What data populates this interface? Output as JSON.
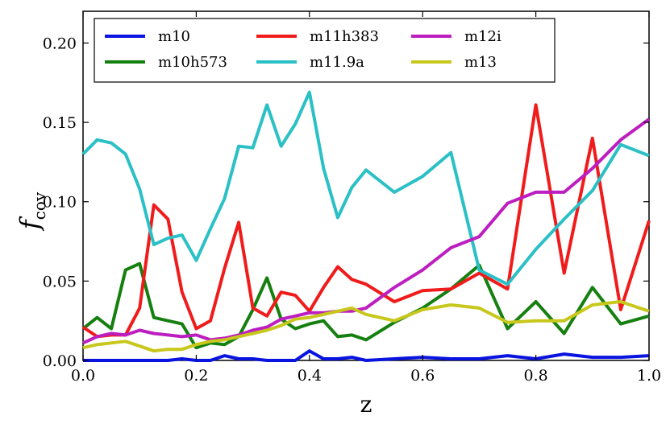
{
  "chart_data": {
    "type": "line",
    "title": "",
    "xlabel": "z",
    "ylabel": "f",
    "ylabel_subscript": "cov",
    "xlim": [
      0.0,
      1.0
    ],
    "ylim": [
      0.0,
      0.22
    ],
    "x_ticks": [
      "0.0",
      "0.2",
      "0.4",
      "0.6",
      "0.8",
      "1.0"
    ],
    "y_ticks": [
      "0.00",
      "0.05",
      "0.10",
      "0.15",
      "0.20"
    ],
    "grid": false,
    "legend_position": "top",
    "x": [
      0.0,
      0.025,
      0.05,
      0.075,
      0.1,
      0.125,
      0.15,
      0.175,
      0.2,
      0.225,
      0.25,
      0.275,
      0.3,
      0.325,
      0.35,
      0.375,
      0.4,
      0.425,
      0.45,
      0.475,
      0.5,
      0.55,
      0.6,
      0.65,
      0.7,
      0.75,
      0.8,
      0.85,
      0.9,
      0.95,
      1.0
    ],
    "series": [
      {
        "name": "m10",
        "color": "#0a14e0",
        "values": [
          0.0,
          0.0,
          0.0,
          0.0,
          0.0,
          0.0,
          0.0,
          0.001,
          0.0,
          0.0,
          0.003,
          0.001,
          0.001,
          0.0,
          0.0,
          0.0,
          0.006,
          0.001,
          0.001,
          0.002,
          0.0,
          0.001,
          0.002,
          0.001,
          0.001,
          0.003,
          0.001,
          0.004,
          0.002,
          0.002,
          0.003
        ]
      },
      {
        "name": "m10h573",
        "color": "#15800f",
        "values": [
          0.02,
          0.027,
          0.02,
          0.057,
          0.061,
          0.027,
          0.025,
          0.023,
          0.008,
          0.011,
          0.01,
          0.015,
          0.032,
          0.052,
          0.026,
          0.02,
          0.023,
          0.025,
          0.015,
          0.016,
          0.013,
          0.024,
          0.033,
          0.045,
          0.06,
          0.02,
          0.037,
          0.017,
          0.046,
          0.023,
          0.028
        ]
      },
      {
        "name": "m11h383",
        "color": "#f01b1b",
        "values": [
          0.021,
          0.015,
          0.016,
          0.016,
          0.033,
          0.098,
          0.089,
          0.043,
          0.02,
          0.025,
          0.058,
          0.087,
          0.033,
          0.028,
          0.043,
          0.041,
          0.031,
          0.046,
          0.059,
          0.051,
          0.048,
          0.037,
          0.044,
          0.045,
          0.055,
          0.045,
          0.161,
          0.055,
          0.14,
          0.032,
          0.088
        ]
      },
      {
        "name": "m11.9a",
        "color": "#2ac0c6",
        "values": [
          0.13,
          0.139,
          0.137,
          0.13,
          0.108,
          0.073,
          0.077,
          0.079,
          0.063,
          0.083,
          0.102,
          0.135,
          0.134,
          0.161,
          0.135,
          0.149,
          0.169,
          0.121,
          0.09,
          0.109,
          0.12,
          0.106,
          0.116,
          0.131,
          0.057,
          0.048,
          0.07,
          0.089,
          0.107,
          0.136,
          0.129
        ]
      },
      {
        "name": "m12i",
        "color": "#bd1ec0",
        "values": [
          0.011,
          0.015,
          0.017,
          0.016,
          0.019,
          0.017,
          0.016,
          0.015,
          0.016,
          0.013,
          0.014,
          0.016,
          0.019,
          0.021,
          0.026,
          0.028,
          0.03,
          0.03,
          0.031,
          0.031,
          0.033,
          0.046,
          0.057,
          0.071,
          0.078,
          0.099,
          0.106,
          0.106,
          0.121,
          0.139,
          0.152
        ]
      },
      {
        "name": "m13",
        "color": "#c7c71c",
        "values": [
          0.008,
          0.01,
          0.011,
          0.012,
          0.009,
          0.006,
          0.007,
          0.007,
          0.01,
          0.012,
          0.013,
          0.015,
          0.017,
          0.019,
          0.022,
          0.026,
          0.027,
          0.029,
          0.031,
          0.033,
          0.029,
          0.025,
          0.032,
          0.035,
          0.033,
          0.024,
          0.025,
          0.025,
          0.035,
          0.037,
          0.031
        ]
      }
    ]
  }
}
